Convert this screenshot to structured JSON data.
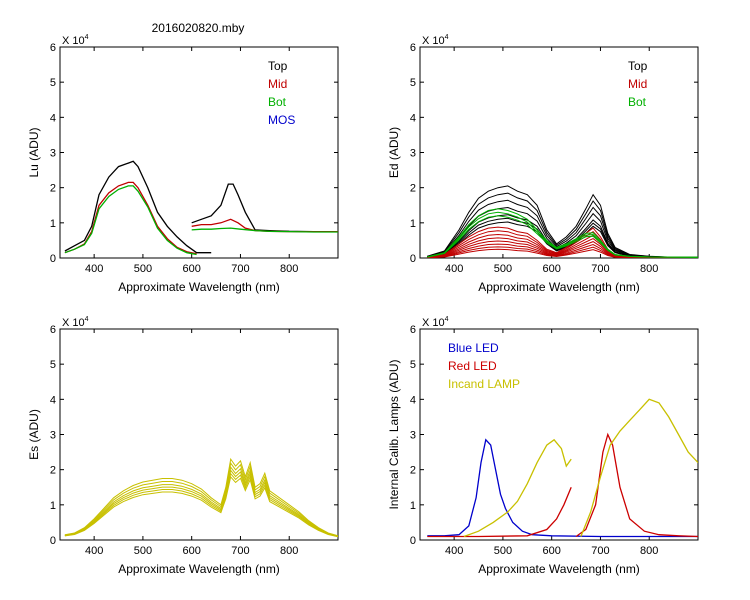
{
  "figure_title": "2016020820.mby",
  "colors": {
    "top": "#000000",
    "mid": "#c00000",
    "bot": "#00b000",
    "mos": "#0000cc",
    "es": "#c8c000",
    "blue_led": "#0000cc",
    "red_led": "#cc0000",
    "lamp": "#c8c000"
  },
  "chart_data": [
    {
      "id": "lu",
      "type": "line",
      "title": "",
      "xlabel": "Approximate Wavelength (nm)",
      "ylabel": "Lu (ADU)",
      "exponent_label": "X 10",
      "exponent_power": "4",
      "xlim": [
        330,
        900
      ],
      "ylim": [
        0,
        6
      ],
      "xticks": [
        "400",
        "500",
        "600",
        "700",
        "800"
      ],
      "xtick_values": [
        400,
        500,
        600,
        700,
        800
      ],
      "yticks": [
        "0",
        "1",
        "2",
        "3",
        "4",
        "5",
        "6"
      ],
      "ytick_values": [
        0,
        1,
        2,
        3,
        4,
        5,
        6
      ],
      "legend": [
        {
          "label": "Top",
          "color": "top"
        },
        {
          "label": "Mid",
          "color": "mid"
        },
        {
          "label": "Bot",
          "color": "bot"
        },
        {
          "label": "MOS",
          "color": "mos"
        }
      ],
      "series": [
        {
          "name": "Top",
          "color": "top",
          "segments": [
            {
              "x": [
                340,
                360,
                380,
                395,
                410,
                430,
                450,
                470,
                480,
                490,
                510,
                530,
                550,
                570,
                590,
                610,
                640
              ],
              "y": [
                0.2,
                0.35,
                0.5,
                0.9,
                1.8,
                2.3,
                2.6,
                2.7,
                2.75,
                2.6,
                2.0,
                1.3,
                0.9,
                0.6,
                0.35,
                0.15,
                0.15
              ]
            },
            {
              "x": [
                600,
                620,
                640,
                660,
                675,
                685,
                695,
                710,
                730,
                760,
                800,
                850,
                900
              ],
              "y": [
                1.0,
                1.1,
                1.2,
                1.5,
                2.1,
                2.1,
                1.8,
                1.3,
                0.8,
                0.78,
                0.76,
                0.75,
                0.75
              ]
            }
          ]
        },
        {
          "name": "Mid",
          "color": "mid",
          "segments": [
            {
              "x": [
                340,
                360,
                380,
                395,
                410,
                430,
                450,
                470,
                480,
                490,
                510,
                530,
                550,
                570,
                590,
                610
              ],
              "y": [
                0.15,
                0.25,
                0.4,
                0.75,
                1.5,
                1.85,
                2.05,
                2.15,
                2.15,
                2.0,
                1.5,
                0.9,
                0.55,
                0.3,
                0.18,
                0.12
              ]
            },
            {
              "x": [
                600,
                620,
                640,
                660,
                680,
                695,
                710,
                730,
                760,
                800,
                850,
                900
              ],
              "y": [
                0.9,
                0.95,
                0.95,
                1.0,
                1.1,
                1.0,
                0.85,
                0.78,
                0.76,
                0.75,
                0.75,
                0.75
              ]
            }
          ]
        },
        {
          "name": "Bot",
          "color": "bot",
          "segments": [
            {
              "x": [
                340,
                360,
                380,
                395,
                410,
                430,
                450,
                470,
                480,
                490,
                510,
                530,
                550,
                570,
                590,
                610
              ],
              "y": [
                0.15,
                0.25,
                0.38,
                0.7,
                1.4,
                1.75,
                1.95,
                2.05,
                2.05,
                1.9,
                1.45,
                0.85,
                0.5,
                0.28,
                0.15,
                0.1
              ]
            },
            {
              "x": [
                600,
                620,
                640,
                660,
                680,
                700,
                730,
                760,
                800,
                850,
                900
              ],
              "y": [
                0.8,
                0.82,
                0.82,
                0.84,
                0.85,
                0.82,
                0.78,
                0.76,
                0.75,
                0.74,
                0.74
              ]
            }
          ]
        }
      ]
    },
    {
      "id": "ed",
      "type": "line",
      "title": "",
      "xlabel": "Approximate Wavelength (nm)",
      "ylabel": "Ed  (ADU)",
      "exponent_label": "X 10",
      "exponent_power": "4",
      "xlim": [
        330,
        900
      ],
      "ylim": [
        0,
        6
      ],
      "xticks": [
        "400",
        "500",
        "600",
        "700",
        "800"
      ],
      "xtick_values": [
        400,
        500,
        600,
        700,
        800
      ],
      "yticks": [
        "0",
        "1",
        "2",
        "3",
        "4",
        "5",
        "6"
      ],
      "ytick_values": [
        0,
        1,
        2,
        3,
        4,
        5,
        6
      ],
      "legend": [
        {
          "label": "Top",
          "color": "top"
        },
        {
          "label": "Mid",
          "color": "mid"
        },
        {
          "label": "Bot",
          "color": "bot"
        }
      ],
      "series": [
        {
          "name": "Top",
          "color": "top",
          "family": true,
          "x": [
            345,
            380,
            410,
            430,
            450,
            470,
            490,
            510,
            530,
            550,
            570,
            590,
            610,
            630,
            650,
            670,
            685,
            700,
            715,
            730,
            760,
            800,
            850,
            900
          ],
          "base": [
            0.05,
            0.2,
            0.8,
            1.3,
            1.7,
            1.9,
            2.0,
            2.05,
            1.9,
            1.8,
            1.5,
            0.8,
            0.4,
            0.6,
            0.9,
            1.4,
            1.8,
            1.5,
            0.7,
            0.3,
            0.1,
            0.05,
            0.02,
            0.02
          ],
          "scales": [
            1.0,
            0.9,
            0.8,
            0.7,
            0.6,
            0.55,
            0.5
          ]
        },
        {
          "name": "Mid",
          "color": "mid",
          "family": true,
          "x": [
            345,
            380,
            410,
            430,
            450,
            470,
            490,
            510,
            530,
            550,
            570,
            590,
            610,
            630,
            650,
            670,
            685,
            700,
            715,
            730,
            760,
            800,
            900
          ],
          "base": [
            0.02,
            0.1,
            0.4,
            0.6,
            0.75,
            0.85,
            0.88,
            0.85,
            0.75,
            0.7,
            0.5,
            0.25,
            0.15,
            0.3,
            0.5,
            0.7,
            0.85,
            0.6,
            0.25,
            0.08,
            0.03,
            0.02,
            0.01
          ],
          "scales": [
            1.0,
            0.88,
            0.76,
            0.65,
            0.55,
            0.45,
            0.36,
            0.28
          ]
        },
        {
          "name": "Bot",
          "color": "bot",
          "family": true,
          "x": [
            345,
            380,
            410,
            430,
            450,
            470,
            490,
            510,
            530,
            550,
            570,
            590,
            610,
            630,
            650,
            670,
            685,
            700,
            715,
            730,
            760,
            800,
            900
          ],
          "base": [
            0.03,
            0.15,
            0.6,
            0.95,
            1.2,
            1.35,
            1.4,
            1.35,
            1.25,
            1.1,
            0.8,
            0.5,
            0.3,
            0.4,
            0.55,
            0.7,
            0.72,
            0.5,
            0.25,
            0.1,
            0.05,
            0.03,
            0.02
          ],
          "scales": [
            1.0,
            0.93,
            0.86
          ]
        }
      ]
    },
    {
      "id": "es",
      "type": "line",
      "title": "",
      "xlabel": "Approximate Wavelength (nm)",
      "ylabel": "Es  (ADU)",
      "exponent_label": "X 10",
      "exponent_power": "4",
      "xlim": [
        330,
        900
      ],
      "ylim": [
        0,
        6
      ],
      "xticks": [
        "400",
        "500",
        "600",
        "700",
        "800"
      ],
      "xtick_values": [
        400,
        500,
        600,
        700,
        800
      ],
      "yticks": [
        "0",
        "1",
        "2",
        "3",
        "4",
        "5",
        "6"
      ],
      "ytick_values": [
        0,
        1,
        2,
        3,
        4,
        5,
        6
      ],
      "legend": [],
      "series": [
        {
          "name": "Es",
          "color": "es",
          "family": true,
          "x": [
            340,
            360,
            380,
            400,
            420,
            440,
            460,
            480,
            500,
            520,
            540,
            560,
            580,
            600,
            620,
            640,
            660,
            670,
            680,
            690,
            700,
            710,
            720,
            730,
            740,
            750,
            760,
            780,
            800,
            820,
            840,
            860,
            880,
            900
          ],
          "base": [
            0.15,
            0.2,
            0.35,
            0.6,
            0.9,
            1.2,
            1.4,
            1.55,
            1.65,
            1.7,
            1.75,
            1.75,
            1.7,
            1.6,
            1.45,
            1.2,
            1.0,
            1.5,
            2.3,
            2.1,
            2.25,
            1.8,
            2.2,
            1.5,
            1.6,
            1.9,
            1.4,
            1.2,
            1.0,
            0.8,
            0.55,
            0.35,
            0.2,
            0.12
          ],
          "scales": [
            1.0,
            0.95,
            0.9,
            0.86,
            0.82,
            0.78
          ]
        }
      ]
    },
    {
      "id": "lamps",
      "type": "line",
      "title": "",
      "xlabel": "Approximate Wavelength (nm)",
      "ylabel": "Internal Calib. Lamps (ADU)",
      "exponent_label": "X 10",
      "exponent_power": "4",
      "xlim": [
        330,
        900
      ],
      "ylim": [
        0,
        6
      ],
      "xticks": [
        "400",
        "500",
        "600",
        "700",
        "800"
      ],
      "xtick_values": [
        400,
        500,
        600,
        700,
        800
      ],
      "yticks": [
        "0",
        "1",
        "2",
        "3",
        "4",
        "5",
        "6"
      ],
      "ytick_values": [
        0,
        1,
        2,
        3,
        4,
        5,
        6
      ],
      "legend": [
        {
          "label": "Blue LED",
          "color": "blue_led"
        },
        {
          "label": "Red LED",
          "color": "red_led"
        },
        {
          "label": "Incand LAMP",
          "color": "lamp"
        }
      ],
      "series": [
        {
          "name": "Blue LED",
          "color": "blue_led",
          "segments": [
            {
              "x": [
                345,
                380,
                410,
                430,
                445,
                455,
                465,
                475,
                485,
                495,
                505,
                520,
                540,
                560,
                600,
                700,
                800,
                900
              ],
              "y": [
                0.12,
                0.12,
                0.15,
                0.4,
                1.2,
                2.2,
                2.85,
                2.7,
                2.0,
                1.3,
                0.9,
                0.5,
                0.25,
                0.15,
                0.12,
                0.1,
                0.1,
                0.1
              ]
            }
          ]
        },
        {
          "name": "Red LED",
          "color": "red_led",
          "segments": [
            {
              "x": [
                345,
                450,
                550,
                590,
                610,
                625,
                640
              ],
              "y": [
                0.1,
                0.1,
                0.12,
                0.3,
                0.6,
                1.0,
                1.5
              ]
            },
            {
              "x": [
                650,
                670,
                690,
                705,
                715,
                725,
                740,
                760,
                790,
                820,
                860,
                900
              ],
              "y": [
                0.1,
                0.3,
                1.0,
                2.5,
                3.0,
                2.7,
                1.5,
                0.6,
                0.25,
                0.15,
                0.12,
                0.1
              ]
            }
          ]
        },
        {
          "name": "Incand LAMP",
          "color": "lamp",
          "segments": [
            {
              "x": [
                420,
                450,
                480,
                510,
                530,
                550,
                570,
                590,
                605,
                620,
                630,
                640
              ],
              "y": [
                0.1,
                0.25,
                0.5,
                0.8,
                1.1,
                1.6,
                2.2,
                2.7,
                2.85,
                2.6,
                2.1,
                2.3
              ]
            },
            {
              "x": [
                660,
                680,
                700,
                720,
                740,
                760,
                780,
                800,
                820,
                840,
                860,
                880,
                900
              ],
              "y": [
                0.1,
                0.8,
                1.8,
                2.7,
                3.1,
                3.4,
                3.7,
                4.0,
                3.9,
                3.5,
                3.0,
                2.5,
                2.2
              ]
            }
          ]
        }
      ]
    }
  ]
}
